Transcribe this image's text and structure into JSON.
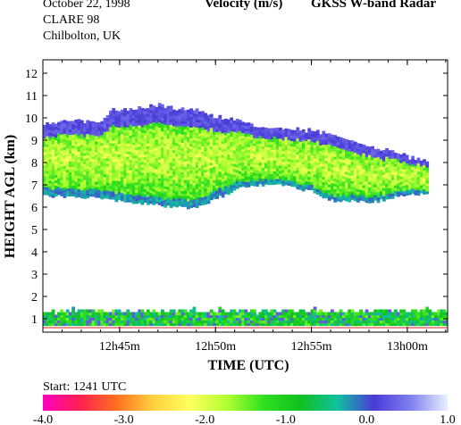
{
  "header": {
    "date": "October  22, 1998",
    "campaign": "CLARE 98",
    "location": "Chilbolton, UK",
    "quantity": "Velocity (m/s)",
    "instrument": "GKSS  W-band Radar",
    "start": "Start: 1241 UTC"
  },
  "chart_data": {
    "type": "heatmap",
    "xlabel": "TIME (UTC)",
    "ylabel": "HEIGHT AGL (km)",
    "x_ticks": [
      "12h45m",
      "12h50m",
      "12h55m",
      "13h00m"
    ],
    "x_tick_minutes": [
      45,
      50,
      55,
      60
    ],
    "xlim_minutes": [
      41.0,
      62.1
    ],
    "y_ticks": [
      "1",
      "2",
      "3",
      "4",
      "5",
      "6",
      "7",
      "8",
      "9",
      "10",
      "11",
      "12"
    ],
    "ylim": [
      0.4,
      12.6
    ],
    "colorbar": {
      "labels": [
        "-4.0",
        "-3.0",
        "-2.0",
        "-1.0",
        "0.0",
        "1.0"
      ],
      "range": [
        -4.0,
        1.0
      ],
      "stops": [
        "#ff00c0",
        "#ff2050",
        "#ff7020",
        "#ffd040",
        "#ffff60",
        "#b0ff30",
        "#30e020",
        "#10c020",
        "#10c0a0",
        "#4a3ad8",
        "#8080f0",
        "#e8f0ff"
      ]
    },
    "upper_layer": {
      "minutes": [
        41.0,
        42.5,
        44.0,
        44.5,
        46.0,
        47.0,
        48.0,
        49.0,
        50.0,
        51.0,
        52.0,
        53.0,
        54.0,
        55.0,
        56.0,
        57.0,
        58.0,
        59.0,
        60.0,
        61.0
      ],
      "top_km": [
        9.7,
        9.8,
        9.8,
        10.3,
        10.4,
        10.5,
        10.3,
        10.3,
        10.0,
        9.9,
        9.6,
        9.5,
        9.4,
        9.4,
        9.2,
        9.0,
        8.6,
        8.5,
        8.2,
        8.0
      ],
      "base_km": [
        6.5,
        6.5,
        6.4,
        6.3,
        6.2,
        6.1,
        6.0,
        6.0,
        6.4,
        6.8,
        7.0,
        7.0,
        6.9,
        6.7,
        6.3,
        6.3,
        6.2,
        6.4,
        6.6,
        6.6
      ],
      "mean_velocity": -1.1
    },
    "lower_layer": {
      "top_km": 1.3,
      "base_km": 0.7,
      "mean_velocity": -0.9
    }
  }
}
